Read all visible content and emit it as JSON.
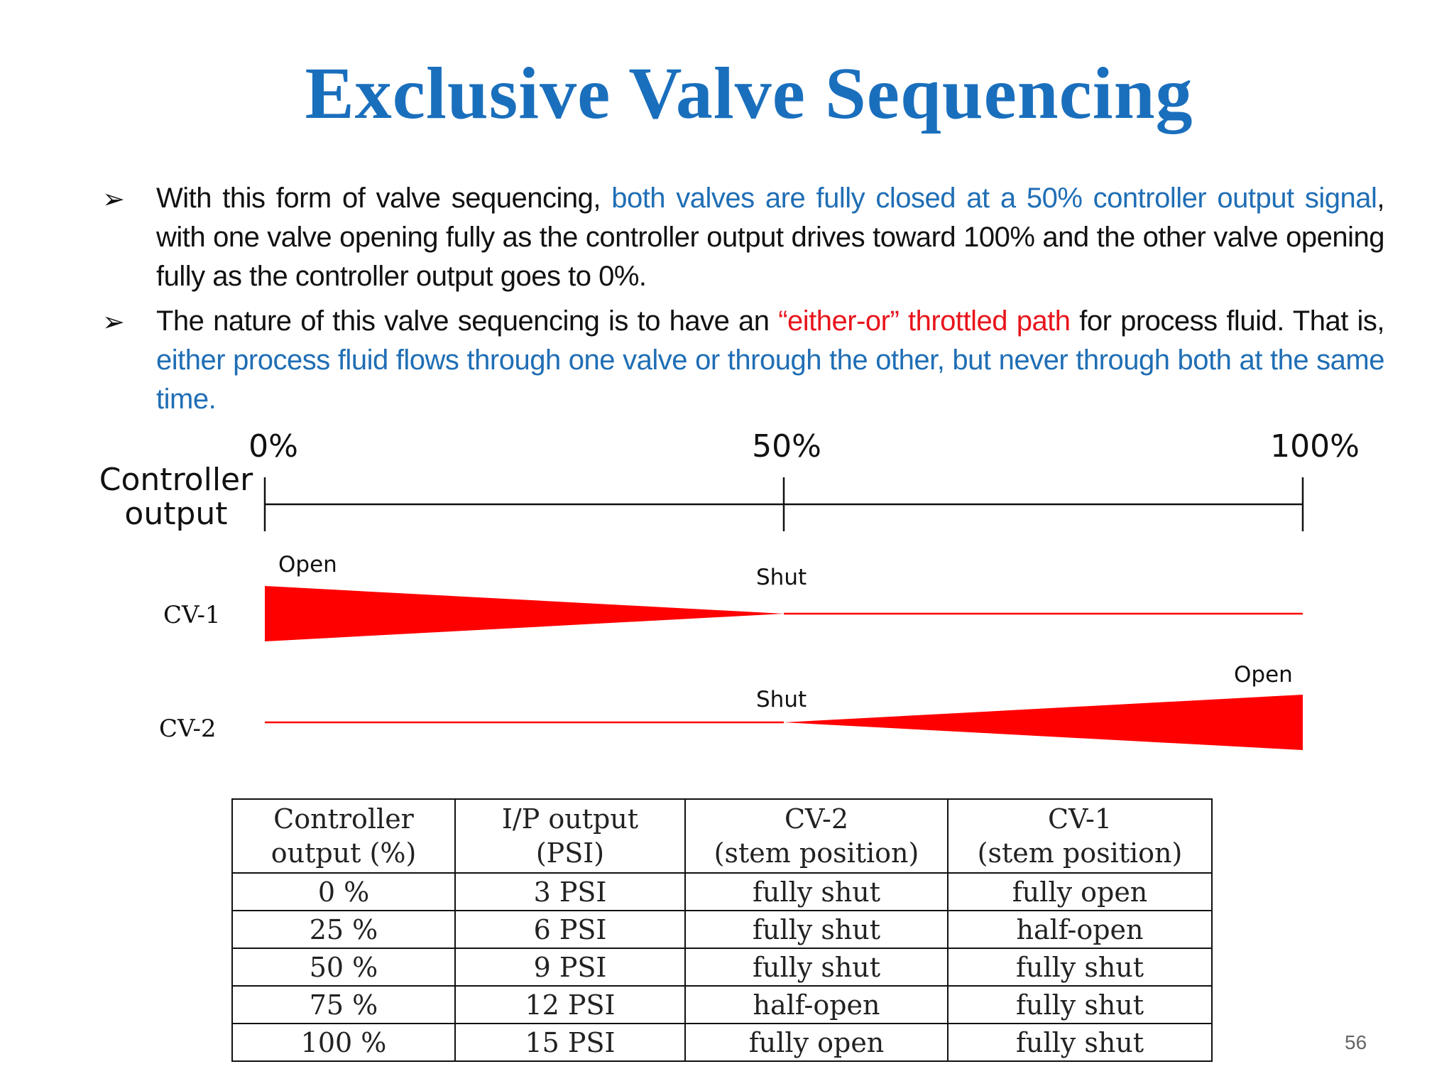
{
  "title": "Exclusive Valve Sequencing",
  "bullets": [
    {
      "p1": "With this form of valve sequencing, ",
      "highlight": "both valves are fully closed at a 50% controller output signal",
      "p2": ", with one valve opening fully as the controller output drives toward 100% and the other valve opening fully as the controller output goes to 0%."
    },
    {
      "p1": "The nature of this valve sequencing is to have an ",
      "red": "“either-or” throttled path",
      "p2": " for process fluid. That is, ",
      "highlight": "either process fluid flows through one valve or through the other, but never through both at the same time."
    }
  ],
  "diagram": {
    "axis_label_line1": "Controller",
    "axis_label_line2": "output",
    "ticks": [
      "0%",
      "50%",
      "100%"
    ],
    "cv1_label": "CV-1",
    "cv2_label": "CV-2",
    "cv1_open": "Open",
    "cv1_shut": "Shut",
    "cv2_shut": "Shut",
    "cv2_open": "Open",
    "fill_color": "#ff0000"
  },
  "table": {
    "headers": [
      [
        "Controller",
        "output (%)"
      ],
      [
        "I/P output",
        "(PSI)"
      ],
      [
        "CV-2",
        "(stem position)"
      ],
      [
        "CV-1",
        "(stem position)"
      ]
    ],
    "rows": [
      [
        "0 %",
        "3 PSI",
        "fully shut",
        "fully open"
      ],
      [
        "25 %",
        "6 PSI",
        "fully shut",
        "half-open"
      ],
      [
        "50 %",
        "9 PSI",
        "fully shut",
        "fully shut"
      ],
      [
        "75 %",
        "12 PSI",
        "half-open",
        "fully shut"
      ],
      [
        "100 %",
        "15 PSI",
        "fully open",
        "fully shut"
      ]
    ]
  },
  "page_number": "56"
}
